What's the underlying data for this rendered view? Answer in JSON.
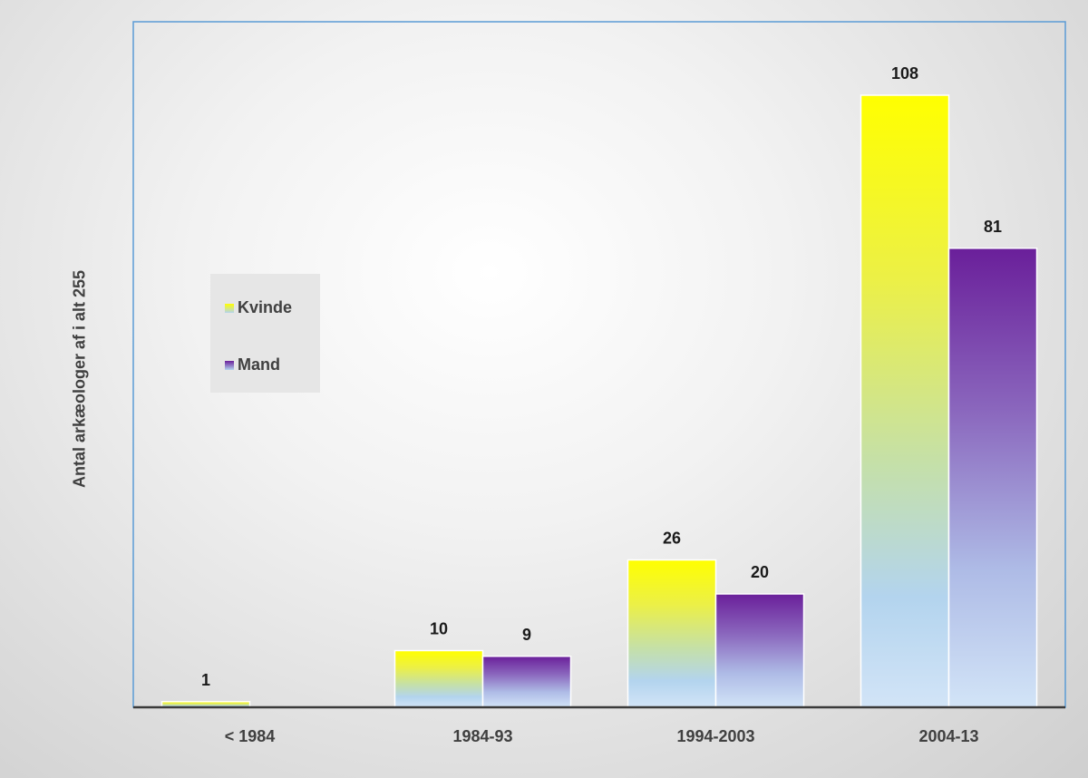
{
  "chart_data": {
    "type": "bar",
    "categories": [
      "< 1984",
      "1984-93",
      "1994-2003",
      "2004-13"
    ],
    "series": [
      {
        "name": "Kvinde",
        "values": [
          1,
          10,
          26,
          108
        ],
        "colors": [
          "#ffff00",
          "#b3d4ee"
        ]
      },
      {
        "name": "Mand",
        "values": [
          null,
          9,
          20,
          81
        ],
        "colors": [
          "#6a1f9a",
          "#b3d4ee"
        ]
      }
    ],
    "data_labels": [
      [
        "1",
        "10",
        "26",
        "108"
      ],
      [
        "",
        "9",
        "20",
        "81"
      ]
    ],
    "ylabel": "Antal arkæologer af i alt 255",
    "xlabel": "",
    "ylim": [
      0,
      120
    ],
    "grid": false,
    "legend": {
      "position": "left",
      "items": [
        "Kvinde",
        "Mand"
      ]
    }
  }
}
